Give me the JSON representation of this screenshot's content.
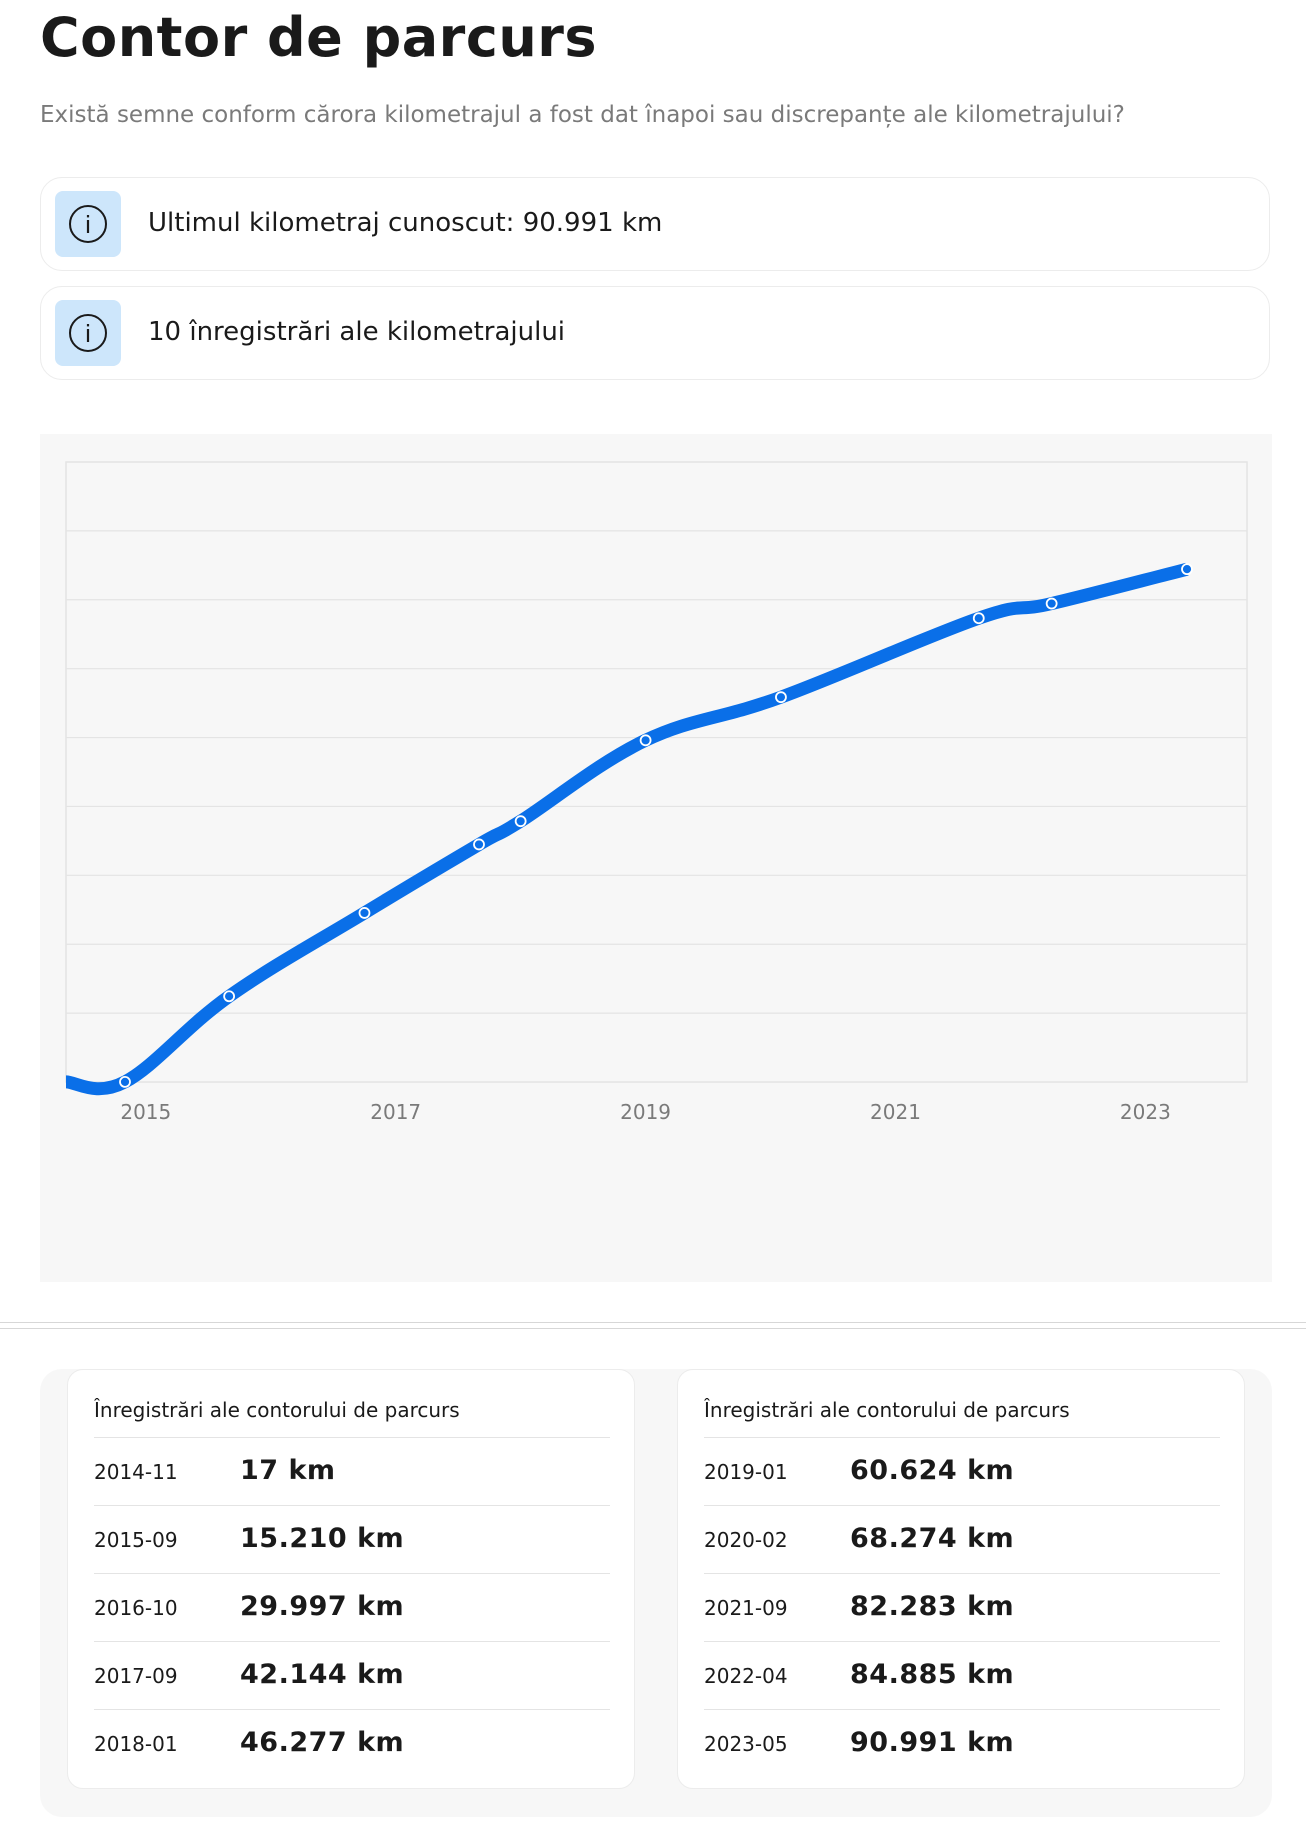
{
  "page": {
    "title": "Contor de parcurs",
    "subtitle": "Există semne conform cărora kilometrajul a fost dat înapoi sau discrepanțe ale kilometrajului?"
  },
  "info_cards": [
    {
      "icon": "info-icon",
      "text": "Ultimul kilometraj cunoscut: 90.991 km"
    },
    {
      "icon": "info-icon",
      "text": "10 înregistrări ale kilometrajului"
    }
  ],
  "colors": {
    "line": "#0a6fe8",
    "info_icon_bg": "#cde6fb",
    "chart_bg": "#f7f7f7",
    "grid": "#e4e4e4"
  },
  "chart_data": {
    "type": "line",
    "x": [
      "2014-11",
      "2015-09",
      "2016-10",
      "2017-09",
      "2018-01",
      "2019-01",
      "2020-02",
      "2021-09",
      "2022-04",
      "2023-05"
    ],
    "values": [
      17,
      15210,
      29997,
      42144,
      46277,
      60624,
      68274,
      82283,
      84885,
      90991
    ],
    "x_ticks": [
      "2015",
      "2017",
      "2019",
      "2021",
      "2023"
    ],
    "ylim": [
      0,
      110000
    ],
    "grid": true,
    "smooth": true
  },
  "records": {
    "heading": "Înregistrări ale contorului de parcurs",
    "left": [
      {
        "date": "2014-11",
        "km": "17 km"
      },
      {
        "date": "2015-09",
        "km": "15.210 km"
      },
      {
        "date": "2016-10",
        "km": "29.997 km"
      },
      {
        "date": "2017-09",
        "km": "42.144 km"
      },
      {
        "date": "2018-01",
        "km": "46.277 km"
      }
    ],
    "right": [
      {
        "date": "2019-01",
        "km": "60.624 km"
      },
      {
        "date": "2020-02",
        "km": "68.274 km"
      },
      {
        "date": "2021-09",
        "km": "82.283 km"
      },
      {
        "date": "2022-04",
        "km": "84.885 km"
      },
      {
        "date": "2023-05",
        "km": "90.991 km"
      }
    ]
  }
}
